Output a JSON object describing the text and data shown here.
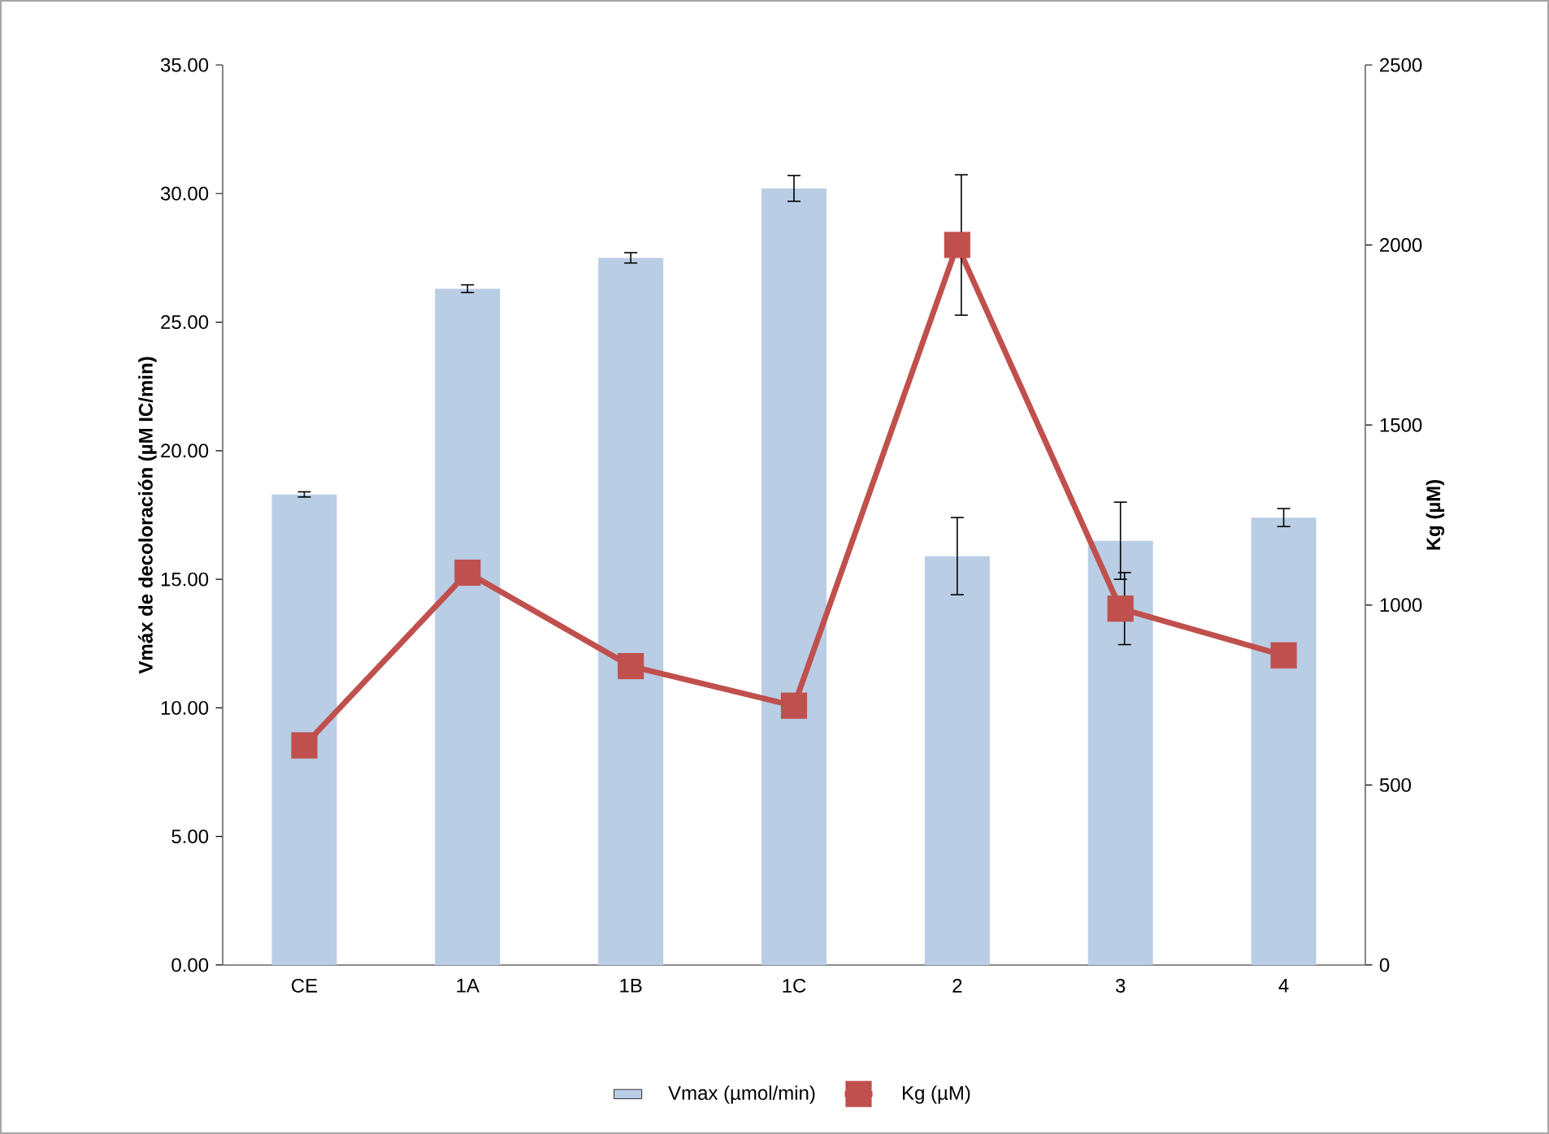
{
  "chart_data": {
    "type": "bar",
    "ylabel": "Vmáx de decoloración (µM IC/min)",
    "y2label": "Kg (µM)",
    "categories": [
      "CE",
      "1A",
      "1B",
      "1C",
      "2",
      "3",
      "4"
    ],
    "series": [
      {
        "name": "Vmax (µmol/min)",
        "color": "#b9cde5",
        "values": [
          18.3,
          26.3,
          27.5,
          30.2,
          15.9,
          16.5,
          17.4
        ],
        "errors": [
          0.1,
          0.15,
          0.2,
          0.5,
          1.5,
          1.5,
          0.35
        ]
      },
      {
        "name": "Kg (µM)",
        "type": "line",
        "axis": "y2",
        "color": "#c0504d",
        "marker": "square",
        "values": [
          610,
          1090,
          830,
          720,
          2000,
          990,
          860
        ],
        "errors": [
          null,
          null,
          null,
          null,
          195,
          100,
          null
        ]
      }
    ],
    "ylim": [
      0,
      35
    ],
    "yticks": [
      {
        "value": 0,
        "label": "0.00"
      },
      {
        "value": 5,
        "label": "5.00"
      },
      {
        "value": 10,
        "label": "10.00"
      },
      {
        "value": 15,
        "label": "15.00"
      },
      {
        "value": 20,
        "label": "20.00"
      },
      {
        "value": 25,
        "label": "25.00"
      },
      {
        "value": 30,
        "label": "30.00"
      },
      {
        "value": 35,
        "label": "35.00"
      }
    ],
    "y2lim": [
      0,
      2500
    ],
    "y2ticks": [
      0,
      500,
      1000,
      1500,
      2000,
      2500
    ],
    "legend": "bottom"
  }
}
